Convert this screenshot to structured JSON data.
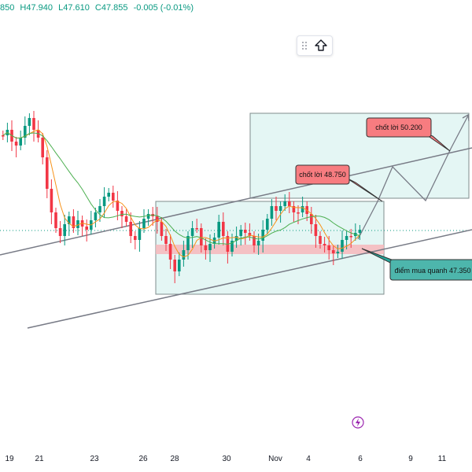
{
  "header": {
    "open": "850",
    "high": "H47.940",
    "low": "L47.610",
    "close": "C47.855",
    "change": "-0.005 (-0.01%)"
  },
  "toolbar": {
    "drag_icon": "grip-dots-icon",
    "action_icon": "arrow-up-icon"
  },
  "annotations": {
    "take_profit_1": "chốt lời 48.750",
    "take_profit_2": "chốt lời 50.200",
    "buy_zone": "điểm mua quanh 47.350"
  },
  "colors": {
    "up": "#089981",
    "down": "#f23645",
    "ma_fast": "#f7931a",
    "ma_slow": "#4caf50",
    "zone_fill": "#d9f2ef",
    "zone_border": "#7f8c8d",
    "callout_red": "#f77c80",
    "callout_teal": "#26a69a"
  },
  "chart_data": {
    "type": "candlestick",
    "x_tick_labels": [
      "19",
      "21",
      "23",
      "26",
      "28",
      "30",
      "Nov",
      "4",
      "6",
      "9",
      "11"
    ],
    "last_price": 47.855,
    "levels": {
      "take_profit_1": 48.75,
      "take_profit_2": 50.2,
      "buy_zone": 47.35
    }
  },
  "watermark": {
    "icon": "lightning-logo-icon"
  }
}
